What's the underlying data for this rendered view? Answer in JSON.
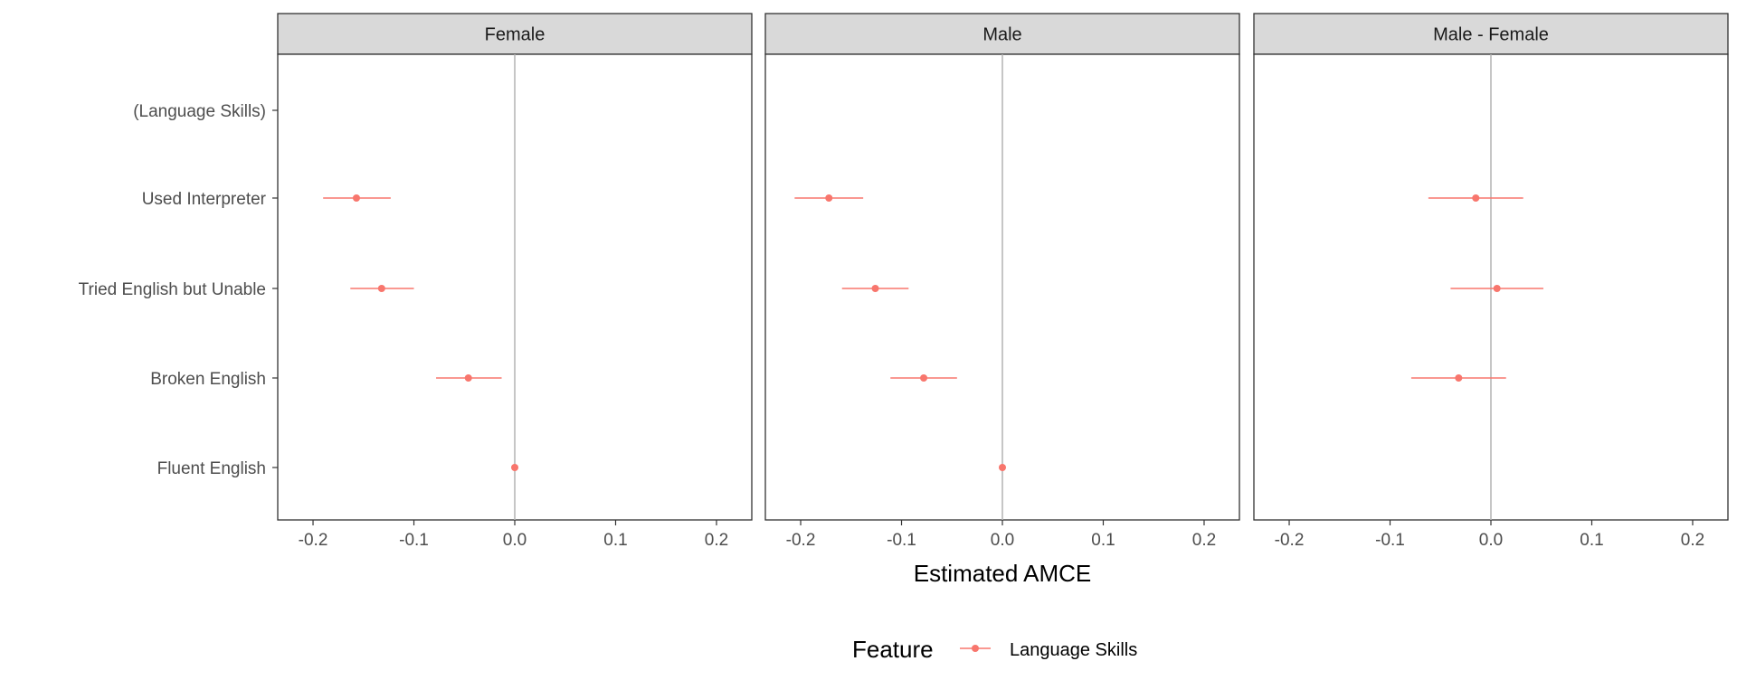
{
  "chart_data": {
    "type": "scatter",
    "subtype": "coefficient-plot-with-error-bars",
    "facets": [
      "Female",
      "Male",
      "Male - Female"
    ],
    "categories": [
      "(Language Skills)",
      "Used Interpreter",
      "Tried English but Unable",
      "Broken English",
      "Fluent English"
    ],
    "xlabel": "Estimated AMCE",
    "ylabel": "",
    "xlim": [
      -0.235,
      0.235
    ],
    "xticks": [
      -0.2,
      -0.1,
      0.0,
      0.1,
      0.2
    ],
    "xtick_labels": [
      "-0.2",
      "-0.1",
      "0.0",
      "0.1",
      "0.2"
    ],
    "reference_line_x": 0,
    "grid": false,
    "legend": {
      "title": "Feature",
      "position": "bottom",
      "entries": [
        "Language Skills"
      ]
    },
    "series": [
      {
        "name": "Language Skills",
        "color": "#F8766D",
        "panels": [
          {
            "facet": "Female",
            "points": [
              {
                "category": "Used Interpreter",
                "estimate": -0.157,
                "lower": -0.19,
                "upper": -0.123
              },
              {
                "category": "Tried English but Unable",
                "estimate": -0.132,
                "lower": -0.163,
                "upper": -0.1
              },
              {
                "category": "Broken English",
                "estimate": -0.046,
                "lower": -0.078,
                "upper": -0.013
              },
              {
                "category": "Fluent English",
                "estimate": 0.0,
                "lower": 0.0,
                "upper": 0.0
              }
            ]
          },
          {
            "facet": "Male",
            "points": [
              {
                "category": "Used Interpreter",
                "estimate": -0.172,
                "lower": -0.206,
                "upper": -0.138
              },
              {
                "category": "Tried English but Unable",
                "estimate": -0.126,
                "lower": -0.159,
                "upper": -0.093
              },
              {
                "category": "Broken English",
                "estimate": -0.078,
                "lower": -0.111,
                "upper": -0.045
              },
              {
                "category": "Fluent English",
                "estimate": 0.0,
                "lower": 0.0,
                "upper": 0.0
              }
            ]
          },
          {
            "facet": "Male - Female",
            "points": [
              {
                "category": "Used Interpreter",
                "estimate": -0.015,
                "lower": -0.062,
                "upper": 0.032
              },
              {
                "category": "Tried English but Unable",
                "estimate": 0.006,
                "lower": -0.04,
                "upper": 0.052
              },
              {
                "category": "Broken English",
                "estimate": -0.032,
                "lower": -0.079,
                "upper": 0.015
              }
            ]
          }
        ]
      }
    ]
  }
}
